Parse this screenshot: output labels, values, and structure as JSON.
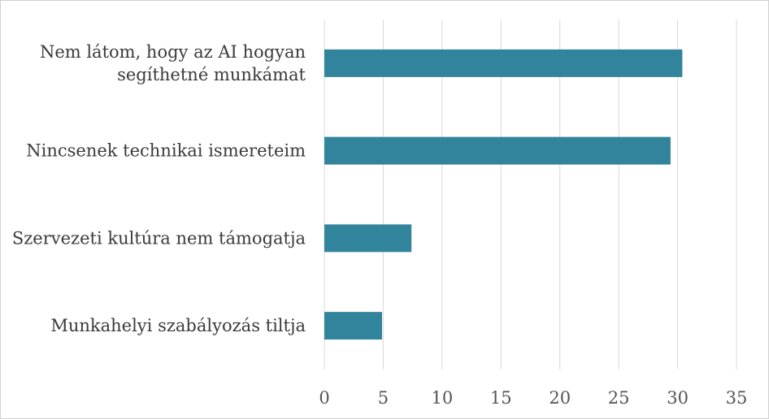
{
  "chart_data": {
    "type": "bar",
    "orientation": "horizontal",
    "title": "",
    "xlabel": "",
    "ylabel": "",
    "categories": [
      "Nem látom, hogy az AI hogyan segíthetné munkámat",
      "Nincsenek technikai ismereteim",
      "Szervezeti kultúra nem támogatja",
      "Munkahelyi szabályozás tiltja"
    ],
    "category_lines": [
      [
        "Nem látom, hogy az AI hogyan",
        "segíthetné munkámat"
      ],
      [
        "Nincsenek technikai ismereteim"
      ],
      [
        "Szervezeti kultúra nem támogatja"
      ],
      [
        "Munkahelyi szabályozás tiltja"
      ]
    ],
    "values": [
      30.4,
      29.4,
      7.4,
      4.9
    ],
    "xlim": [
      0,
      35
    ],
    "xticks": [
      "0",
      "5",
      "10",
      "15",
      "20",
      "25",
      "30",
      "35"
    ],
    "grid": "vertical",
    "legend": "none",
    "bar_color": "#31849b"
  }
}
